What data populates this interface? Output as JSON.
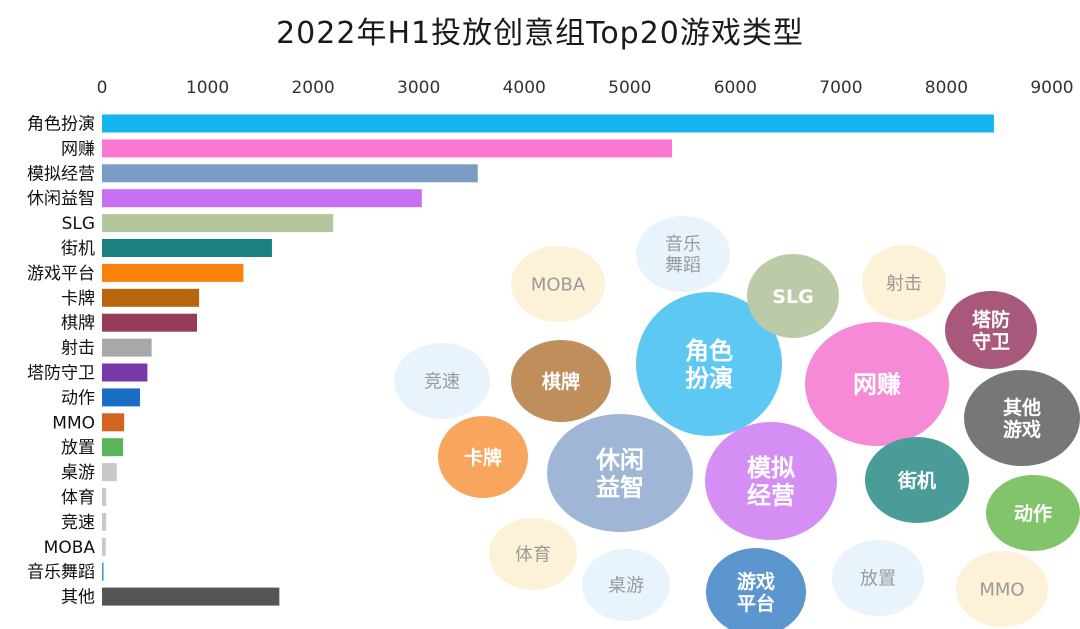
{
  "chart_data": {
    "type": "bar",
    "orientation": "horizontal",
    "title": "2022年H1投放创意组Top20游戏类型",
    "xlim": [
      0,
      9000
    ],
    "xticks": [
      0,
      1000,
      2000,
      3000,
      4000,
      5000,
      6000,
      7000,
      8000,
      9000
    ],
    "grid": false,
    "categories": [
      "角色扮演",
      "网赚",
      "模拟经营",
      "休闲益智",
      "SLG",
      "街机",
      "游戏平台",
      "卡牌",
      "棋牌",
      "射击",
      "塔防守卫",
      "动作",
      "MMO",
      "放置",
      "桌游",
      "体育",
      "竞速",
      "MOBA",
      "音乐舞蹈",
      "其他"
    ],
    "values": [
      8450,
      5400,
      3560,
      3030,
      2190,
      1610,
      1340,
      920,
      900,
      470,
      430,
      360,
      210,
      200,
      140,
      40,
      40,
      35,
      15,
      1680
    ],
    "colors": [
      "#14b4ee",
      "#fa78d4",
      "#7a9cc4",
      "#c86ef0",
      "#b4c49c",
      "#1a8080",
      "#fa820a",
      "#b8660e",
      "#963c5a",
      "#a8a8a8",
      "#7838a8",
      "#1a6ec4",
      "#d2641e",
      "#5ab45a",
      "#c8c8c8",
      "#c8c8c8",
      "#c8c8c8",
      "#c8c8c8",
      "#3aa0e0",
      "#555555"
    ]
  },
  "bubbles": [
    {
      "label": "角色扮演",
      "lines": [
        "角色",
        "扮演"
      ],
      "color": "#5ec8f4",
      "style": "dark"
    },
    {
      "label": "网赚",
      "lines": [
        "网赚"
      ],
      "color": "#f68ad6",
      "style": "dark"
    },
    {
      "label": "模拟经营",
      "lines": [
        "模拟",
        "经营"
      ],
      "color": "#d58ff4",
      "style": "dark"
    },
    {
      "label": "休闲益智",
      "lines": [
        "休闲",
        "益智"
      ],
      "color": "#9fb6d6",
      "style": "dark"
    },
    {
      "label": "SLG",
      "lines": [
        "SLG"
      ],
      "color": "#bccaa8",
      "style": "dark"
    },
    {
      "label": "街机",
      "lines": [
        "街机"
      ],
      "color": "#4a9c98",
      "style": "dark"
    },
    {
      "label": "游戏平台",
      "lines": [
        "游戏",
        "平台"
      ],
      "color": "#5c96ce",
      "style": "dark"
    },
    {
      "label": "卡牌",
      "lines": [
        "卡牌"
      ],
      "color": "#f8a65e",
      "style": "dark"
    },
    {
      "label": "棋牌",
      "lines": [
        "棋牌"
      ],
      "color": "#c08e5a",
      "style": "dark"
    },
    {
      "label": "塔防守卫",
      "lines": [
        "塔防",
        "守卫"
      ],
      "color": "#a8587a",
      "style": "dark"
    },
    {
      "label": "其他游戏",
      "lines": [
        "其他",
        "游戏"
      ],
      "color": "#777777",
      "style": "dark"
    },
    {
      "label": "动作",
      "lines": [
        "动作"
      ],
      "color": "#82c46a",
      "style": "dark"
    },
    {
      "label": "射击",
      "lines": [
        "射击"
      ],
      "color": "#fdf1d8",
      "style": "light"
    },
    {
      "label": "MOBA",
      "lines": [
        "MOBA"
      ],
      "color": "#fdf1d8",
      "style": "light"
    },
    {
      "label": "音乐舞蹈",
      "lines": [
        "音乐",
        "舞蹈"
      ],
      "color": "#e8f3fc",
      "style": "light"
    },
    {
      "label": "竞速",
      "lines": [
        "竞速"
      ],
      "color": "#e8f3fc",
      "style": "light"
    },
    {
      "label": "体育",
      "lines": [
        "体育"
      ],
      "color": "#fdf1d8",
      "style": "light"
    },
    {
      "label": "桌游",
      "lines": [
        "桌游"
      ],
      "color": "#e8f3fc",
      "style": "light"
    },
    {
      "label": "放置",
      "lines": [
        "放置"
      ],
      "color": "#e8f3fc",
      "style": "light"
    },
    {
      "label": "MMO",
      "lines": [
        "MMO"
      ],
      "color": "#fdf1d8",
      "style": "light"
    }
  ]
}
